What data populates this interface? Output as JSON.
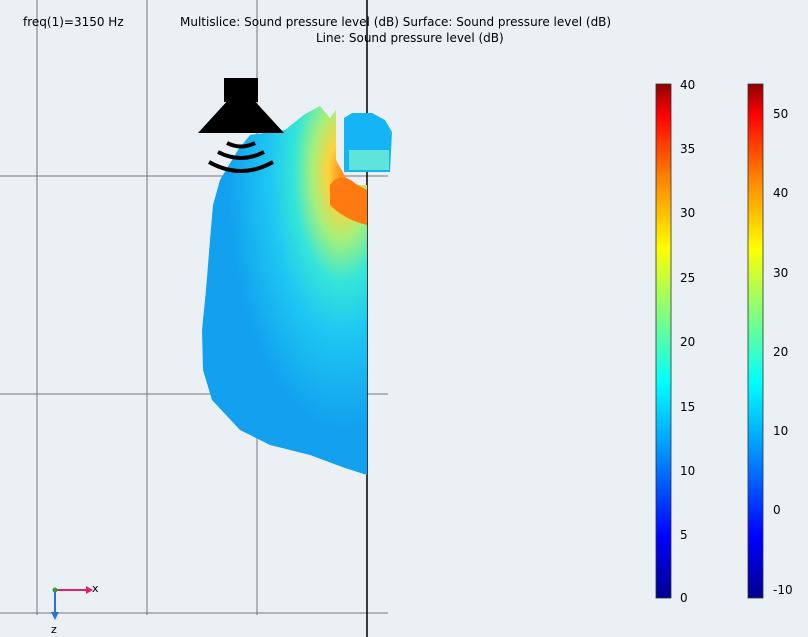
{
  "plot": {
    "frequency_label": "freq(1)=3150 Hz",
    "title_line1": "Multislice: Sound pressure level (dB)  Surface: Sound pressure level (dB)",
    "title_line2": "Line: Sound pressure level (dB)"
  },
  "colorbar_left": {
    "ticks": [
      "40",
      "35",
      "30",
      "25",
      "20",
      "15",
      "10",
      "5",
      "0"
    ],
    "colormap": "rainbow"
  },
  "colorbar_right": {
    "ticks": [
      "50",
      "40",
      "30",
      "20",
      "10",
      "0",
      "-10"
    ],
    "colormap": "rainbow"
  },
  "axes_triad": {
    "x_label": "x",
    "z_label": "z",
    "x_color": "#e0206a",
    "y_color": "#2ea043",
    "z_color": "#2f6fd6"
  },
  "icons": [
    "speaker-icon"
  ]
}
